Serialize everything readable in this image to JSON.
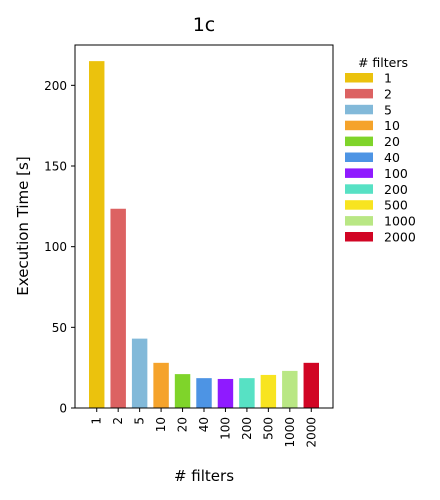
{
  "chart_data": {
    "type": "bar",
    "title": "1c",
    "xlabel": "# filters",
    "ylabel": "Execution Time [s]",
    "categories": [
      "1",
      "2",
      "5",
      "10",
      "20",
      "40",
      "100",
      "200",
      "500",
      "1000",
      "2000"
    ],
    "values": [
      215,
      123.5,
      43,
      28,
      21,
      18.5,
      18,
      18.5,
      20.5,
      23,
      28
    ],
    "colors": [
      "#ebc20d",
      "#dc6262",
      "#82b9d9",
      "#f5a32b",
      "#7fd42a",
      "#4d94e4",
      "#8f1aff",
      "#57e1c4",
      "#f8e420",
      "#b9e784",
      "#d10524"
    ],
    "ylim": [
      0,
      225
    ],
    "yticks": [
      0,
      50,
      100,
      150,
      200
    ],
    "grid": false,
    "legend": {
      "title": "# filters",
      "placement": "outside-right",
      "entries": [
        "1",
        "2",
        "5",
        "10",
        "20",
        "40",
        "100",
        "200",
        "500",
        "1000",
        "2000"
      ]
    }
  }
}
